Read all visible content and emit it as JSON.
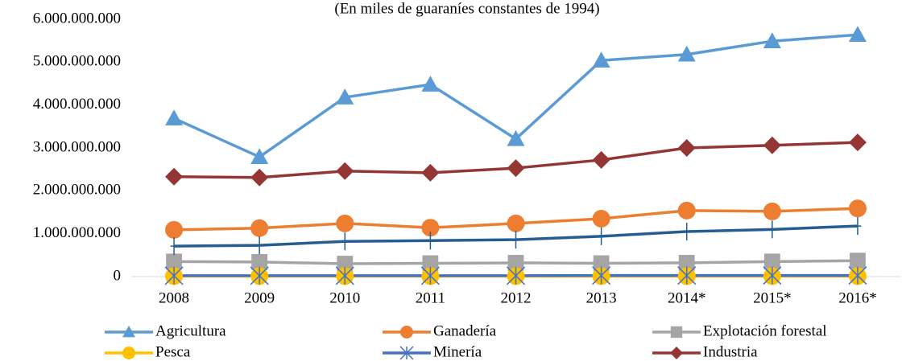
{
  "chart_data": {
    "type": "line",
    "title": "(En miles de guaraníes constantes de 1994)",
    "categories": [
      "2008",
      "2009",
      "2010",
      "2011",
      "2012",
      "2013",
      "2014*",
      "2015*",
      "2016*"
    ],
    "ylim": [
      0,
      6000000000
    ],
    "yticks": [
      {
        "value": 0,
        "label": "0"
      },
      {
        "value": 1000000000,
        "label": "1.000.000.000"
      },
      {
        "value": 2000000000,
        "label": "2.000.000.000"
      },
      {
        "value": 3000000000,
        "label": "3.000.000.000"
      },
      {
        "value": 4000000000,
        "label": "4.000.000.000"
      },
      {
        "value": 5000000000,
        "label": "5.000.000.000"
      },
      {
        "value": 6000000000,
        "label": "6.000.000.000"
      }
    ],
    "grid": false,
    "legend": "bottom",
    "series": [
      {
        "name": "Agricultura",
        "color": "#5b9bd5",
        "marker": "triangle",
        "values": [
          3690000000,
          2790000000,
          4180000000,
          4480000000,
          3210000000,
          5040000000,
          5180000000,
          5490000000,
          5640000000
        ]
      },
      {
        "name": "Ganadería",
        "color": "#ed7d31",
        "marker": "circle",
        "values": [
          1090000000,
          1130000000,
          1240000000,
          1140000000,
          1240000000,
          1350000000,
          1540000000,
          1520000000,
          1590000000
        ]
      },
      {
        "name": "Explotación forestal",
        "color": "#a5a5a5",
        "marker": "square",
        "values": [
          350000000,
          340000000,
          300000000,
          310000000,
          320000000,
          310000000,
          320000000,
          350000000,
          370000000
        ]
      },
      {
        "name": "Pesca",
        "color": "#ffc000",
        "marker": "circle",
        "values": [
          10000000,
          10000000,
          10000000,
          10000000,
          10000000,
          10000000,
          10000000,
          10000000,
          10000000
        ]
      },
      {
        "name": "Minería",
        "color": "#4472c4",
        "marker": "star",
        "values": [
          20000000,
          20000000,
          20000000,
          20000000,
          20000000,
          25000000,
          25000000,
          25000000,
          25000000
        ]
      },
      {
        "name": "Industria",
        "color": "#943634",
        "marker": "diamond",
        "values": [
          2330000000,
          2310000000,
          2460000000,
          2420000000,
          2530000000,
          2720000000,
          3000000000,
          3060000000,
          3130000000
        ]
      },
      {
        "color": "#255e91",
        "marker": "plus",
        "values": [
          710000000,
          730000000,
          820000000,
          840000000,
          860000000,
          940000000,
          1050000000,
          1100000000,
          1180000000
        ]
      }
    ]
  }
}
